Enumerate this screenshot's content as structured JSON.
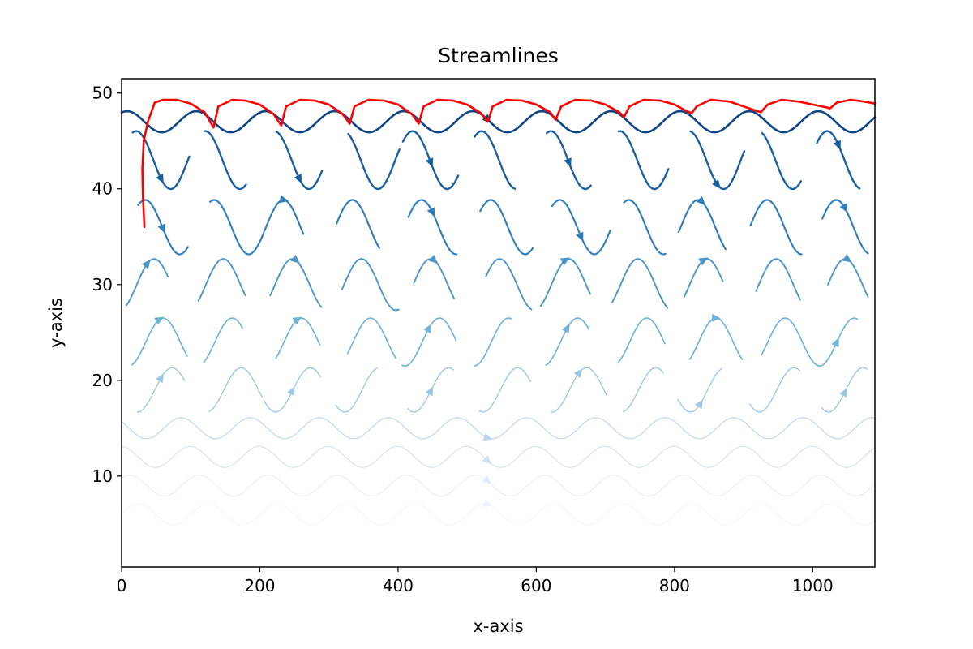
{
  "chart_data": {
    "type": "streamplot",
    "title": "Streamlines",
    "xlabel": "x-axis",
    "ylabel": "y-axis",
    "xlim": [
      0,
      1090
    ],
    "ylim": [
      0.5,
      51.5
    ],
    "xticks": [
      0,
      200,
      400,
      600,
      800,
      1000
    ],
    "yticks": [
      10,
      20,
      30,
      40,
      50
    ],
    "grid": false,
    "colormap": "Blues",
    "colors": {
      "highlight": "#ff0000",
      "frame": "#000000"
    },
    "field": {
      "period": 100,
      "wave_amplitude": 1.1
    },
    "bands": [
      {
        "y": 6.0,
        "intensity": 0.06,
        "continuous": true
      },
      {
        "y": 9.0,
        "intensity": 0.12,
        "continuous": true
      },
      {
        "y": 12.0,
        "intensity": 0.2,
        "continuous": true
      },
      {
        "y": 15.0,
        "intensity": 0.27,
        "continuous": true
      },
      {
        "y": 19.0,
        "intensity": 0.36,
        "continuous": false
      },
      {
        "y": 24.0,
        "intensity": 0.48,
        "continuous": false
      },
      {
        "y": 30.0,
        "intensity": 0.6,
        "continuous": false
      },
      {
        "y": 36.0,
        "intensity": 0.7,
        "continuous": false
      },
      {
        "y": 43.0,
        "intensity": 0.82,
        "continuous": false
      },
      {
        "y": 47.0,
        "intensity": 0.92,
        "continuous": true
      }
    ],
    "highlight_streamline": {
      "color": "#ff0000",
      "points": [
        [
          33,
          36
        ],
        [
          31,
          39
        ],
        [
          30,
          42
        ],
        [
          32,
          45
        ],
        [
          38,
          47
        ],
        [
          48,
          49
        ],
        [
          60,
          49.3
        ],
        [
          80,
          49.3
        ],
        [
          100,
          48.9
        ],
        [
          120,
          48.0
        ],
        [
          133,
          46.4
        ],
        [
          140,
          48.6
        ],
        [
          160,
          49.3
        ],
        [
          180,
          49.2
        ],
        [
          200,
          48.8
        ],
        [
          220,
          47.8
        ],
        [
          231,
          46.6
        ],
        [
          238,
          48.6
        ],
        [
          258,
          49.3
        ],
        [
          280,
          49.2
        ],
        [
          300,
          48.8
        ],
        [
          320,
          47.8
        ],
        [
          330,
          46.8
        ],
        [
          337,
          48.6
        ],
        [
          357,
          49.3
        ],
        [
          380,
          49.2
        ],
        [
          400,
          48.8
        ],
        [
          420,
          47.8
        ],
        [
          430,
          46.8
        ],
        [
          437,
          48.6
        ],
        [
          457,
          49.3
        ],
        [
          480,
          49.2
        ],
        [
          500,
          48.8
        ],
        [
          520,
          47.9
        ],
        [
          530,
          47.0
        ],
        [
          537,
          48.6
        ],
        [
          557,
          49.3
        ],
        [
          580,
          49.2
        ],
        [
          600,
          48.8
        ],
        [
          620,
          48.0
        ],
        [
          628,
          47.2
        ],
        [
          636,
          48.6
        ],
        [
          656,
          49.3
        ],
        [
          680,
          49.2
        ],
        [
          700,
          48.8
        ],
        [
          720,
          48.0
        ],
        [
          727,
          47.5
        ],
        [
          735,
          48.6
        ],
        [
          755,
          49.3
        ],
        [
          780,
          49.2
        ],
        [
          800,
          48.8
        ],
        [
          818,
          48.1
        ],
        [
          825,
          47.9
        ],
        [
          832,
          48.6
        ],
        [
          852,
          49.3
        ],
        [
          880,
          49.1
        ],
        [
          900,
          48.6
        ],
        [
          920,
          48.1
        ],
        [
          925,
          48.0
        ],
        [
          935,
          48.8
        ],
        [
          955,
          49.3
        ],
        [
          980,
          49.1
        ],
        [
          1000,
          48.8
        ],
        [
          1020,
          48.5
        ],
        [
          1025,
          48.4
        ],
        [
          1035,
          49.0
        ],
        [
          1055,
          49.3
        ],
        [
          1075,
          49.1
        ],
        [
          1090,
          48.9
        ]
      ]
    }
  }
}
